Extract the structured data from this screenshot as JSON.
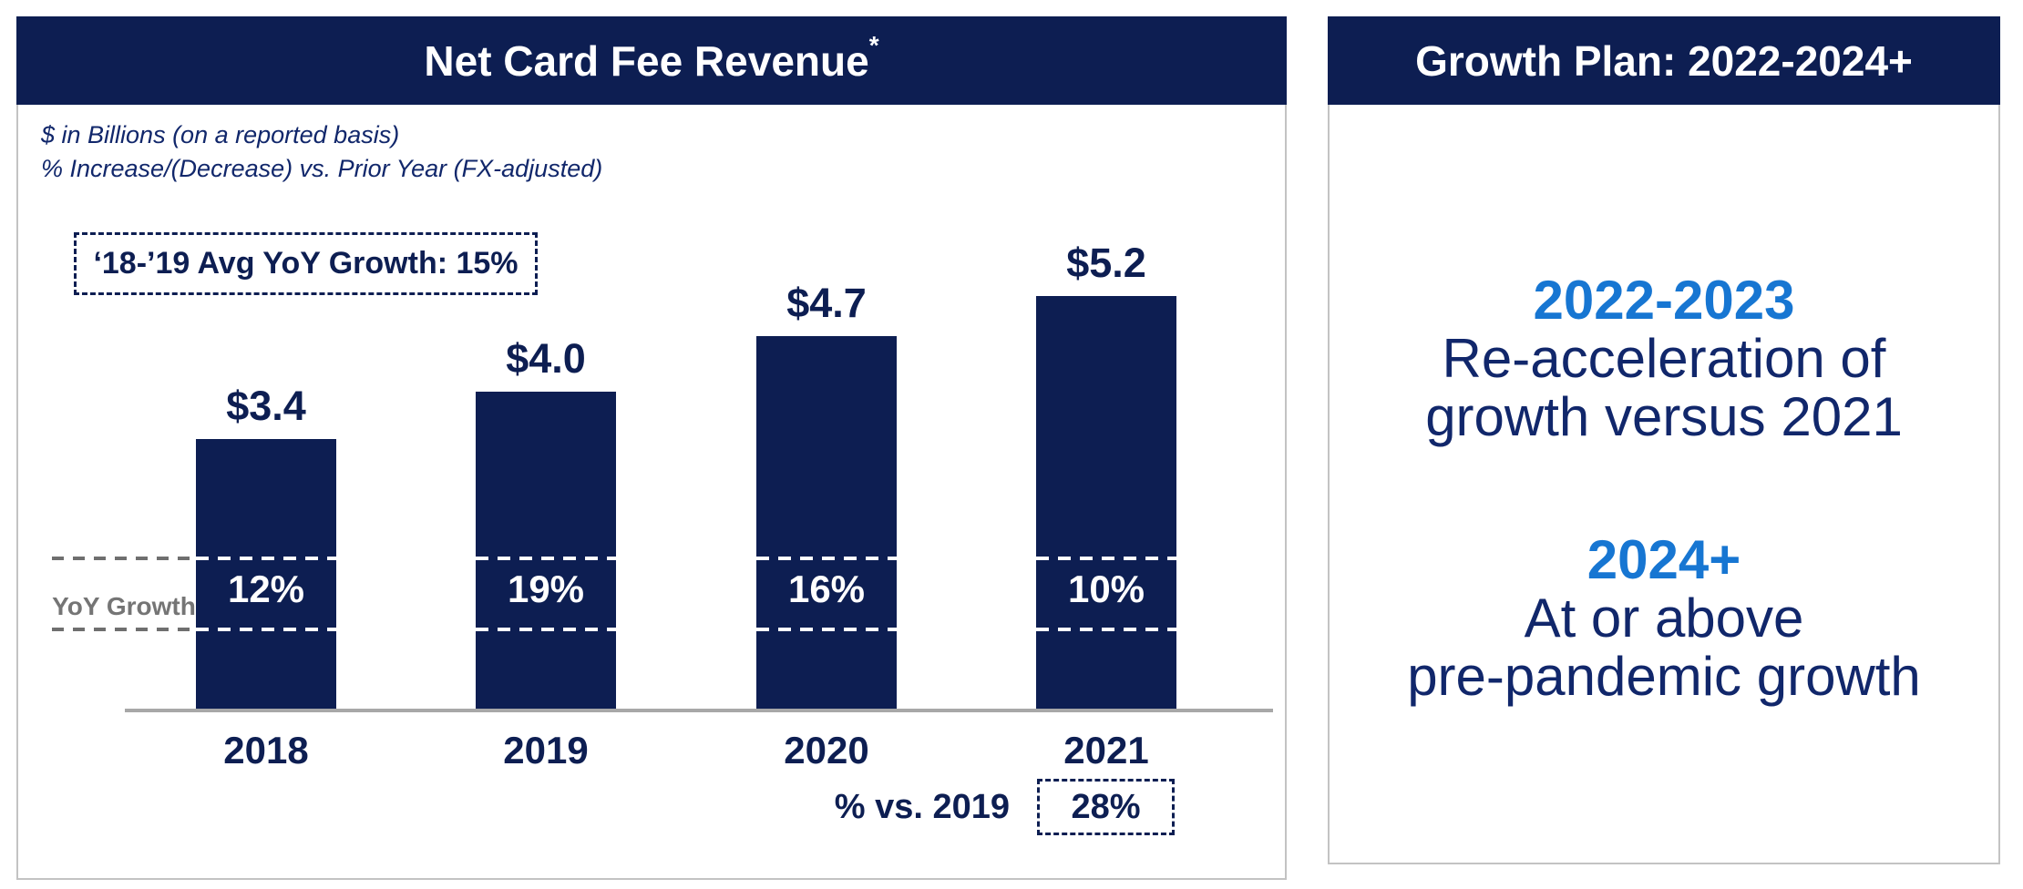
{
  "left_panel": {
    "title": "Net Card Fee Revenue",
    "title_superscript": "*",
    "subtitle_line1": "$ in Billions (on a reported basis)",
    "subtitle_line2": "% Increase/(Decrease) vs. Prior Year (FX-adjusted)",
    "callout": "‘18-’19 Avg YoY Growth: 15%",
    "yoy_axis_label": "YoY Growth",
    "footer_label": "% vs. 2019",
    "footer_value": "28%"
  },
  "right_panel": {
    "title": "Growth Plan: 2022-2024+",
    "sections": [
      {
        "heading": "2022-2023",
        "line1": "Re-acceleration of",
        "line2": "growth versus 2021"
      },
      {
        "heading": "2024+",
        "line1": "At or above",
        "line2": "pre-pandemic growth"
      }
    ]
  },
  "chart_data": {
    "type": "bar",
    "title": "Net Card Fee Revenue ($ in Billions, reported basis)",
    "categories": [
      "2018",
      "2019",
      "2020",
      "2021"
    ],
    "series": [
      {
        "name": "Net card fee revenue ($B)",
        "values": [
          3.4,
          4.0,
          4.7,
          5.2
        ]
      }
    ],
    "value_labels": [
      "$3.4",
      "$4.0",
      "$4.7",
      "$5.2"
    ],
    "yoy_growth_labels": [
      "12%",
      "19%",
      "16%",
      "10%"
    ],
    "annotations": {
      "avg_yoy_growth_2018_2019": "15%",
      "pct_vs_2019_for_2021": "28%"
    },
    "xlabel": "",
    "ylabel": "",
    "ylim": [
      0,
      5.2
    ],
    "grid": false,
    "legend": false
  },
  "colors": {
    "navy": "#0d1e52",
    "body_navy": "#11276b",
    "accent_blue": "#1776d2",
    "axis_gray": "#a8a8a8",
    "label_gray": "#757575",
    "panel_border": "#c3c3c3",
    "bar_fill": "#0d1e52",
    "bar_label_white": "#ffffff"
  }
}
